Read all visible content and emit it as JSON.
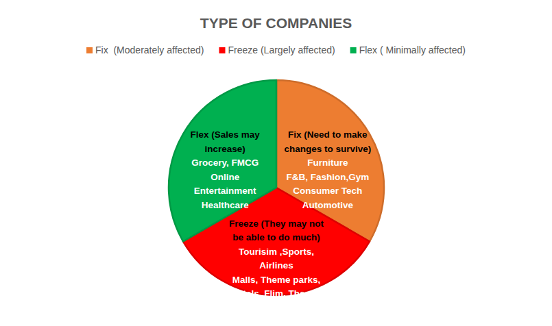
{
  "chart_data": {
    "type": "pie",
    "title": "TYPE OF COMPANIES",
    "categories": [
      "Fix  (Moderately affected)",
      "Freeze (Largely affected)",
      "Flex ( Minimally affected)"
    ],
    "values": [
      33.3,
      33.3,
      33.3
    ],
    "colors": [
      "#ed7d31",
      "#ff0000",
      "#00b050"
    ],
    "legend": "top",
    "annotations": [
      {
        "heading": [
          "Fix (Need to make",
          "changes to survive)"
        ],
        "items": [
          "Furniture",
          "F&B, Fashion,Gym",
          "Consumer Tech",
          "Automotive"
        ]
      },
      {
        "heading": [
          "Freeze (They may not",
          "be able to do much)"
        ],
        "items": [
          "Tourisim ,Sports,",
          "Airlines",
          "Malls, Theme parks,",
          "Hotels, Flim, Theatre"
        ]
      },
      {
        "heading": [
          "Flex (Sales may",
          "increase)"
        ],
        "items": [
          "Grocery, FMCG",
          "Online",
          "Entertainment",
          "Healthcare"
        ]
      }
    ]
  }
}
